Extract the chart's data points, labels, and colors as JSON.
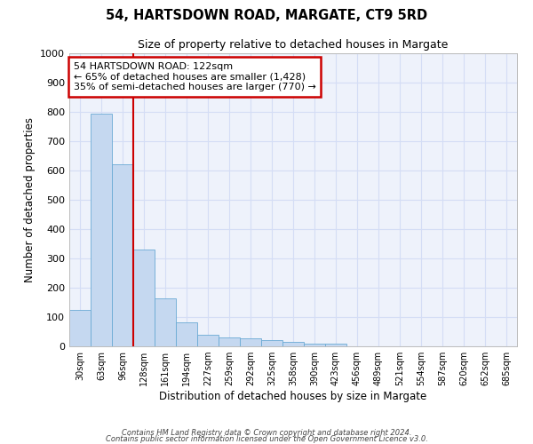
{
  "title": "54, HARTSDOWN ROAD, MARGATE, CT9 5RD",
  "subtitle": "Size of property relative to detached houses in Margate",
  "xlabel": "Distribution of detached houses by size in Margate",
  "ylabel": "Number of detached properties",
  "categories": [
    "30sqm",
    "63sqm",
    "96sqm",
    "128sqm",
    "161sqm",
    "194sqm",
    "227sqm",
    "259sqm",
    "292sqm",
    "325sqm",
    "358sqm",
    "390sqm",
    "423sqm",
    "456sqm",
    "489sqm",
    "521sqm",
    "554sqm",
    "587sqm",
    "620sqm",
    "652sqm",
    "685sqm"
  ],
  "values": [
    125,
    795,
    620,
    330,
    163,
    82,
    40,
    30,
    27,
    20,
    14,
    10,
    8,
    0,
    0,
    0,
    0,
    0,
    0,
    0,
    0
  ],
  "bar_color": "#c5d8f0",
  "bar_edgecolor": "#6aaad4",
  "bar_width": 1.0,
  "vline_color": "#cc0000",
  "vline_index": 3,
  "ylim": [
    0,
    1000
  ],
  "yticks": [
    0,
    100,
    200,
    300,
    400,
    500,
    600,
    700,
    800,
    900,
    1000
  ],
  "annotation_line1": "54 HARTSDOWN ROAD: 122sqm",
  "annotation_line2": "← 65% of detached houses are smaller (1,428)",
  "annotation_line3": "35% of semi-detached houses are larger (770) →",
  "annotation_box_color": "#cc0000",
  "grid_color": "#d4ddf5",
  "background_color": "#eef2fb",
  "footer_line1": "Contains HM Land Registry data © Crown copyright and database right 2024.",
  "footer_line2": "Contains public sector information licensed under the Open Government Licence v3.0."
}
